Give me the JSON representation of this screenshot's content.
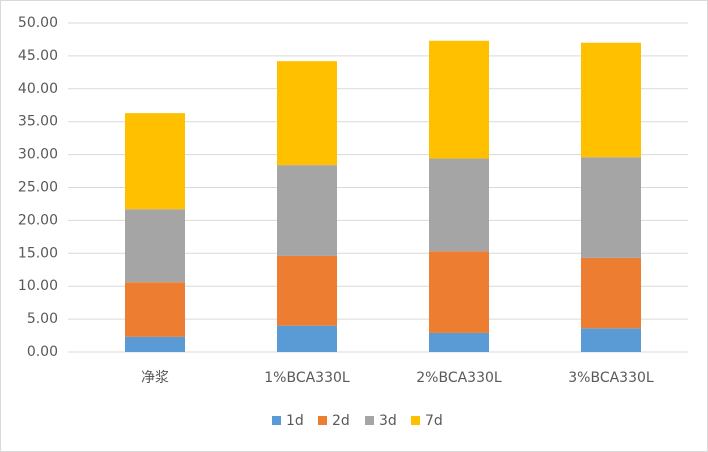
{
  "chart_data": {
    "type": "stacked-bar",
    "categories": [
      "净浆",
      "1%BCA330L",
      "2%BCA330L",
      "3%BCA330L"
    ],
    "series": [
      {
        "name": "1d",
        "color": "#5b9bd5",
        "values": [
          2.3,
          4.0,
          2.9,
          3.6
        ]
      },
      {
        "name": "2d",
        "color": "#ed7d31",
        "values": [
          8.3,
          10.6,
          12.4,
          10.7
        ]
      },
      {
        "name": "3d",
        "color": "#a5a5a5",
        "values": [
          11.1,
          13.8,
          14.1,
          15.3
        ]
      },
      {
        "name": "7d",
        "color": "#ffc000",
        "values": [
          14.6,
          15.8,
          17.9,
          17.4
        ]
      }
    ],
    "ylim": [
      0,
      50
    ],
    "yticks": [
      {
        "value": 0,
        "label": "0.00"
      },
      {
        "value": 5,
        "label": "5.00"
      },
      {
        "value": 10,
        "label": "10.00"
      },
      {
        "value": 15,
        "label": "15.00"
      },
      {
        "value": 20,
        "label": "20.00"
      },
      {
        "value": 25,
        "label": "25.00"
      },
      {
        "value": 30,
        "label": "30.00"
      },
      {
        "value": 35,
        "label": "35.00"
      },
      {
        "value": 40,
        "label": "40.00"
      },
      {
        "value": 45,
        "label": "45.00"
      },
      {
        "value": 50,
        "label": "50.00"
      }
    ],
    "grid": true,
    "legend": "bottom"
  }
}
